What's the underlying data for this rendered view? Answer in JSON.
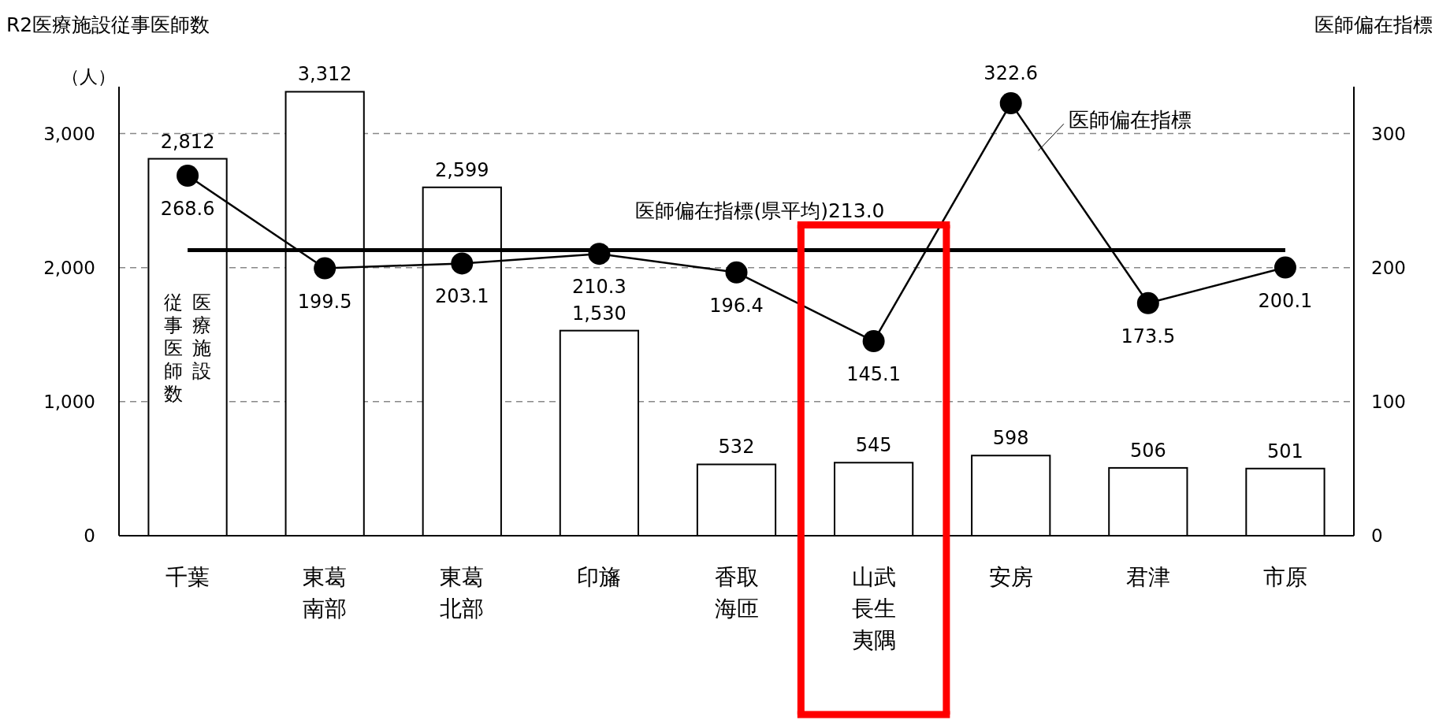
{
  "chart_data": {
    "type": "bar",
    "ylabel": "R2医療施設従事医師数",
    "y2label": "医師偏在指標",
    "annotations": [
      "（人）"
    ],
    "categories": [
      "千葉",
      "東葛南部",
      "東葛北部",
      "印旛",
      "香取海匝",
      "山武長生夷隅",
      "安房",
      "君津",
      "市原"
    ],
    "series": [
      {
        "name": "医療施設従事医師数",
        "color": "#ffffff",
        "values": [
          2812,
          3312,
          2599,
          1530,
          532,
          545,
          598,
          506,
          501
        ],
        "value_labels": [
          "2,812",
          "3,312",
          "2,599",
          "1,530",
          "532",
          "545",
          "598",
          "506",
          "501"
        ]
      },
      {
        "name": "医師偏在指標",
        "type": "line",
        "axis": "y2",
        "color": "#000000",
        "marker": "circle",
        "values": [
          268.6,
          199.5,
          203.1,
          210.3,
          196.4,
          145.1,
          322.6,
          173.5,
          200.1
        ]
      }
    ],
    "ylim": [
      0,
      3350
    ],
    "yticks": [
      0,
      {
        "value": 1000,
        "label": "1,000"
      },
      {
        "value": 2000,
        "label": "2,000"
      },
      {
        "value": 3000,
        "label": "3,000"
      }
    ],
    "y2lim": [
      0,
      335
    ],
    "y2ticks": [
      0,
      100,
      200,
      300
    ],
    "ref_lines": [
      {
        "axis": "y2",
        "value": 213.0,
        "label": "医師偏在指標(県平均)213.0",
        "color": "#000000"
      }
    ],
    "grid": "y",
    "legend": false,
    "data_labels": true
  }
}
